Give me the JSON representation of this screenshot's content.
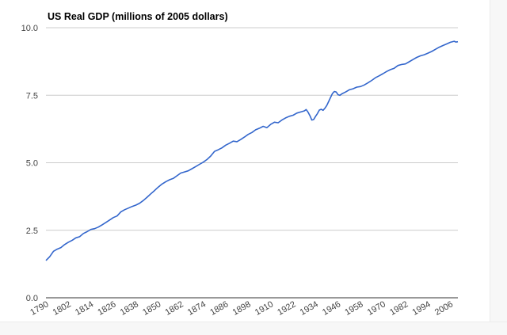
{
  "chart_data": {
    "type": "line",
    "title": "US Real GDP (millions of 2005 dollars)",
    "xlabel": "",
    "ylabel": "",
    "ylim": [
      0,
      10
    ],
    "xlim": [
      1790,
      2010
    ],
    "y_ticks": [
      "0.0",
      "2.5",
      "5.0",
      "7.5",
      "10.0"
    ],
    "y_tick_values": [
      0,
      2.5,
      5,
      7.5,
      10
    ],
    "x_ticks": [
      "1790",
      "1802",
      "1814",
      "1826",
      "1838",
      "1850",
      "1862",
      "1874",
      "1886",
      "1898",
      "1910",
      "1922",
      "1934",
      "1946",
      "1958",
      "1970",
      "1982",
      "1994",
      "2006"
    ],
    "x_tick_values": [
      1790,
      1802,
      1814,
      1826,
      1838,
      1850,
      1862,
      1874,
      1886,
      1898,
      1910,
      1922,
      1934,
      1946,
      1958,
      1970,
      1982,
      1994,
      2006
    ],
    "grid": true,
    "line_color": "#3366cc",
    "series": [
      {
        "name": "",
        "x": [
          1790,
          1792,
          1794,
          1796,
          1798,
          1800,
          1802,
          1804,
          1806,
          1808,
          1810,
          1812,
          1814,
          1816,
          1818,
          1820,
          1822,
          1824,
          1826,
          1828,
          1830,
          1832,
          1834,
          1836,
          1838,
          1840,
          1842,
          1844,
          1846,
          1848,
          1850,
          1852,
          1854,
          1856,
          1858,
          1860,
          1862,
          1864,
          1866,
          1868,
          1870,
          1872,
          1874,
          1876,
          1878,
          1880,
          1882,
          1884,
          1886,
          1888,
          1890,
          1892,
          1894,
          1896,
          1898,
          1900,
          1902,
          1904,
          1906,
          1908,
          1910,
          1912,
          1914,
          1916,
          1918,
          1920,
          1922,
          1924,
          1926,
          1928,
          1929,
          1930,
          1931,
          1932,
          1933,
          1934,
          1935,
          1936,
          1937,
          1938,
          1939,
          1940,
          1941,
          1942,
          1943,
          1944,
          1945,
          1946,
          1947,
          1948,
          1950,
          1952,
          1954,
          1956,
          1958,
          1960,
          1962,
          1964,
          1966,
          1968,
          1970,
          1972,
          1974,
          1976,
          1978,
          1980,
          1982,
          1984,
          1986,
          1988,
          1990,
          1992,
          1994,
          1996,
          1998,
          2000,
          2002,
          2004,
          2006,
          2008,
          2009,
          2010
        ],
        "values": [
          1.38,
          1.52,
          1.72,
          1.8,
          1.86,
          1.97,
          2.06,
          2.13,
          2.22,
          2.26,
          2.38,
          2.45,
          2.53,
          2.56,
          2.62,
          2.7,
          2.79,
          2.88,
          2.97,
          3.03,
          3.18,
          3.26,
          3.32,
          3.38,
          3.43,
          3.5,
          3.6,
          3.72,
          3.85,
          3.97,
          4.1,
          4.21,
          4.3,
          4.37,
          4.42,
          4.52,
          4.62,
          4.66,
          4.7,
          4.78,
          4.86,
          4.94,
          5.02,
          5.12,
          5.25,
          5.42,
          5.48,
          5.55,
          5.65,
          5.72,
          5.8,
          5.78,
          5.86,
          5.95,
          6.05,
          6.12,
          6.22,
          6.28,
          6.35,
          6.3,
          6.42,
          6.5,
          6.48,
          6.58,
          6.66,
          6.72,
          6.76,
          6.84,
          6.88,
          6.92,
          6.97,
          6.87,
          6.74,
          6.58,
          6.6,
          6.72,
          6.82,
          6.95,
          6.98,
          6.94,
          7.02,
          7.12,
          7.27,
          7.42,
          7.56,
          7.64,
          7.62,
          7.52,
          7.5,
          7.55,
          7.62,
          7.7,
          7.74,
          7.8,
          7.82,
          7.88,
          7.96,
          8.05,
          8.15,
          8.22,
          8.3,
          8.38,
          8.45,
          8.5,
          8.6,
          8.64,
          8.66,
          8.74,
          8.82,
          8.9,
          8.96,
          9.0,
          9.06,
          9.12,
          9.2,
          9.28,
          9.34,
          9.4,
          9.46,
          9.5,
          9.47,
          9.48
        ]
      }
    ]
  }
}
